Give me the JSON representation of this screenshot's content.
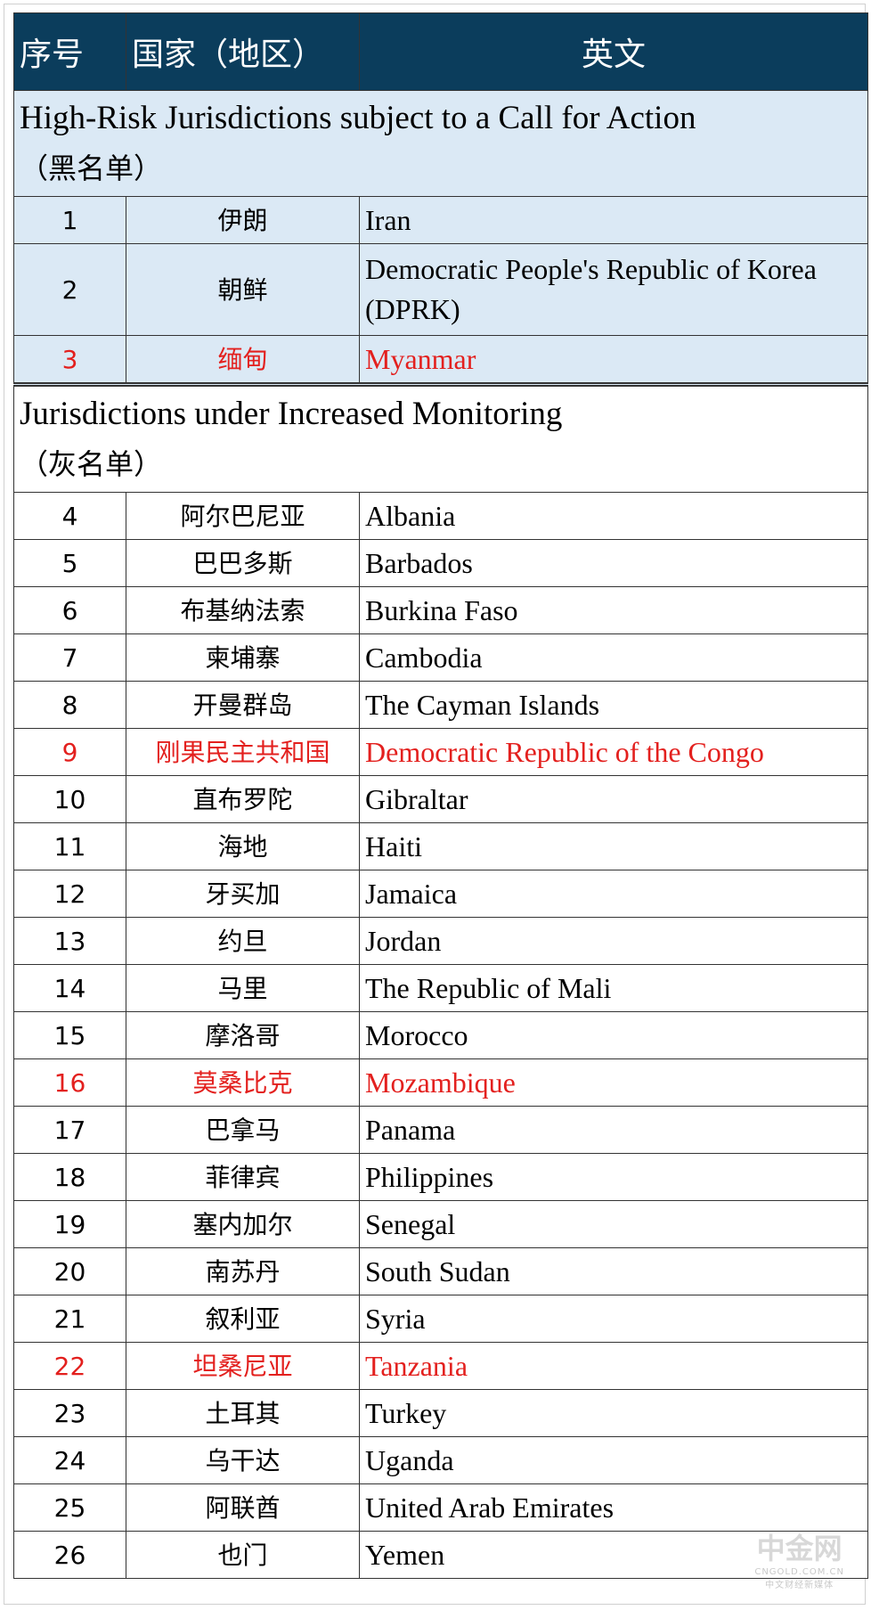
{
  "header": [
    "序号",
    "国家（地区）",
    "英文"
  ],
  "sections": [
    {
      "title": "High-Risk Jurisdictions subject to a Call for Action",
      "subtitle": "（黑名单）",
      "background": "#dbe9f5",
      "rows": [
        {
          "no": 1,
          "cn": "伊朗",
          "en": "Iran"
        },
        {
          "no": 2,
          "cn": "朝鲜",
          "en": "Democratic People's Republic of Korea (DPRK)"
        },
        {
          "no": 3,
          "cn": "缅甸",
          "en": "Myanmar",
          "color": "#e3201e"
        }
      ]
    },
    {
      "title": "Jurisdictions under Increased Monitoring",
      "subtitle": "（灰名单）",
      "background": "#ffffff",
      "rows": [
        {
          "no": 4,
          "cn": "阿尔巴尼亚",
          "en": "Albania"
        },
        {
          "no": 5,
          "cn": "巴巴多斯",
          "en": "Barbados"
        },
        {
          "no": 6,
          "cn": "布基纳法索",
          "en": "Burkina Faso"
        },
        {
          "no": 7,
          "cn": "柬埔寨",
          "en": "Cambodia"
        },
        {
          "no": 8,
          "cn": "开曼群岛",
          "en": "The Cayman Islands"
        },
        {
          "no": 9,
          "cn": "刚果民主共和国",
          "en": "Democratic Republic of the Congo",
          "color": "#e3201e"
        },
        {
          "no": 10,
          "cn": "直布罗陀",
          "en": "Gibraltar"
        },
        {
          "no": 11,
          "cn": "海地",
          "en": "Haiti"
        },
        {
          "no": 12,
          "cn": "牙买加",
          "en": "Jamaica"
        },
        {
          "no": 13,
          "cn": "约旦",
          "en": "Jordan"
        },
        {
          "no": 14,
          "cn": "马里",
          "en": "The Republic of Mali"
        },
        {
          "no": 15,
          "cn": "摩洛哥",
          "en": "Morocco"
        },
        {
          "no": 16,
          "cn": "莫桑比克",
          "en": "Mozambique",
          "color": "#e3201e"
        },
        {
          "no": 17,
          "cn": "巴拿马",
          "en": "Panama"
        },
        {
          "no": 18,
          "cn": "菲律宾",
          "en": "Philippines"
        },
        {
          "no": 19,
          "cn": "塞内加尔",
          "en": "Senegal"
        },
        {
          "no": 20,
          "cn": "南苏丹",
          "en": "South Sudan"
        },
        {
          "no": 21,
          "cn": "叙利亚",
          "en": "Syria"
        },
        {
          "no": 22,
          "cn": "坦桑尼亚",
          "en": "Tanzania",
          "color": "#e3201e"
        },
        {
          "no": 23,
          "cn": "土耳其",
          "en": "Turkey"
        },
        {
          "no": 24,
          "cn": "乌干达",
          "en": "Uganda"
        },
        {
          "no": 25,
          "cn": "阿联酋",
          "en": "United Arab Emirates"
        },
        {
          "no": 26,
          "cn": "也门",
          "en": "Yemen"
        }
      ]
    }
  ],
  "watermark": {
    "brand": "中金网",
    "domain": "CNGOLD.COM.CN",
    "tagline": "中文财经新媒体"
  }
}
